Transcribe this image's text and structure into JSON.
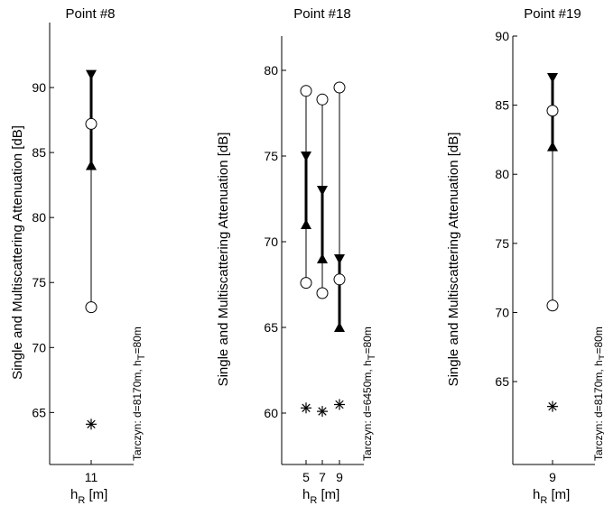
{
  "chart_data": [
    {
      "type": "scatter",
      "title": "Point #8",
      "ylabel": "Single and Multiscattering Attenuation [dB]",
      "xlabel": "h",
      "xlabel_sub": "R",
      "xlabel_unit": " [m]",
      "annotation": "Tarczyn:  d=8170m,  h",
      "annotation_sub": "T",
      "annotation_tail": "=80m",
      "ylim": [
        61,
        95
      ],
      "yticks": [
        65,
        70,
        75,
        80,
        85,
        90
      ],
      "x_categories": [
        11
      ],
      "bands": [
        {
          "x": 11,
          "lower_triangle": 84,
          "upper_triangle": 91,
          "circle_low": 73.1,
          "circle_high": 87.2,
          "star": 64.1
        }
      ]
    },
    {
      "type": "scatter",
      "title": "Point #18",
      "ylabel": "Single and Multiscattering Attenuation [dB]",
      "xlabel": "h",
      "xlabel_sub": "R",
      "xlabel_unit": " [m]",
      "annotation": "Tarczyn:  d=6450m,  h",
      "annotation_sub": "T",
      "annotation_tail": "=80m",
      "ylim": [
        57,
        82
      ],
      "yticks": [
        60,
        65,
        70,
        75,
        80
      ],
      "x_categories": [
        5,
        7,
        9
      ],
      "bands": [
        {
          "x": 5,
          "lower_triangle": 71,
          "upper_triangle": 75,
          "circle_low": 67.6,
          "circle_high": 78.8,
          "star": 60.3
        },
        {
          "x": 7,
          "lower_triangle": 69,
          "upper_triangle": 73,
          "circle_low": 67.0,
          "circle_high": 78.3,
          "star": 60.1
        },
        {
          "x": 9,
          "lower_triangle": 65,
          "upper_triangle": 69,
          "circle_low": 67.8,
          "circle_high": 79.0,
          "star": 60.5
        }
      ]
    },
    {
      "type": "scatter",
      "title": "Point #19",
      "ylabel": "Single and Multiscattering Attenuation [dB]",
      "xlabel": "h",
      "xlabel_sub": "R",
      "xlabel_unit": " [m]",
      "annotation": "Tarczyn:  d=8170m,  h",
      "annotation_sub": "T",
      "annotation_tail": "=80m",
      "ylim": [
        59,
        90
      ],
      "yticks": [
        65,
        70,
        75,
        80,
        85,
        90
      ],
      "x_categories": [
        9
      ],
      "bands": [
        {
          "x": 9,
          "lower_triangle": 82,
          "upper_triangle": 87,
          "circle_low": 70.5,
          "circle_high": 84.6,
          "star": 63.2
        }
      ]
    }
  ]
}
